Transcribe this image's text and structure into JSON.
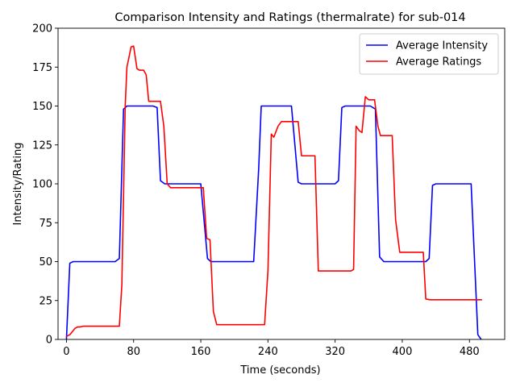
{
  "chart_data": {
    "type": "line",
    "title": "Comparison Intensity and Ratings (thermalrate) for sub-014",
    "xlabel": "Time (seconds)",
    "ylabel": "Intensity/Rating",
    "xlim": [
      -10,
      522
    ],
    "ylim": [
      0,
      200
    ],
    "xticks": [
      0,
      80,
      160,
      240,
      320,
      400,
      480
    ],
    "yticks": [
      0,
      25,
      50,
      75,
      100,
      125,
      150,
      175,
      200
    ],
    "grid": false,
    "legend_position": "upper right",
    "series": [
      {
        "name": "Average Intensity",
        "color": "#0000ff",
        "points": [
          [
            0,
            0
          ],
          [
            4,
            49
          ],
          [
            8,
            50
          ],
          [
            58,
            50
          ],
          [
            63,
            52
          ],
          [
            68,
            148
          ],
          [
            72,
            150
          ],
          [
            103,
            150
          ],
          [
            108,
            149
          ],
          [
            112,
            102
          ],
          [
            117,
            100
          ],
          [
            160,
            100
          ],
          [
            168,
            52
          ],
          [
            172,
            50
          ],
          [
            223,
            50
          ],
          [
            229,
            110
          ],
          [
            232,
            150
          ],
          [
            268,
            150
          ],
          [
            276,
            101
          ],
          [
            280,
            100
          ],
          [
            320,
            100
          ],
          [
            324,
            102
          ],
          [
            328,
            149
          ],
          [
            332,
            150
          ],
          [
            362,
            150
          ],
          [
            368,
            148
          ],
          [
            373,
            53
          ],
          [
            378,
            50
          ],
          [
            428,
            50
          ],
          [
            432,
            52
          ],
          [
            436,
            99
          ],
          [
            440,
            100
          ],
          [
            482,
            100
          ],
          [
            490,
            3
          ],
          [
            494,
            0
          ]
        ]
      },
      {
        "name": "Average Ratings",
        "color": "#ff0000",
        "points": [
          [
            0,
            2
          ],
          [
            4,
            3
          ],
          [
            10,
            7
          ],
          [
            13,
            8
          ],
          [
            16,
            8
          ],
          [
            20,
            8.5
          ],
          [
            63,
            8.5
          ],
          [
            66,
            35
          ],
          [
            70,
            150
          ],
          [
            72,
            175
          ],
          [
            74,
            180
          ],
          [
            77,
            188
          ],
          [
            80,
            188.5
          ],
          [
            84,
            174
          ],
          [
            87,
            173
          ],
          [
            92,
            173
          ],
          [
            95,
            170
          ],
          [
            98,
            153
          ],
          [
            112,
            153
          ],
          [
            116,
            137
          ],
          [
            120,
            100
          ],
          [
            124,
            97.5
          ],
          [
            163,
            97.5
          ],
          [
            167,
            65
          ],
          [
            171,
            64
          ],
          [
            175,
            18
          ],
          [
            179,
            9.5
          ],
          [
            236,
            9.5
          ],
          [
            240,
            44
          ],
          [
            244,
            132
          ],
          [
            247,
            130
          ],
          [
            252,
            137
          ],
          [
            256,
            140
          ],
          [
            276,
            140
          ],
          [
            280,
            118
          ],
          [
            296,
            118
          ],
          [
            300,
            44
          ],
          [
            339,
            44
          ],
          [
            342,
            45
          ],
          [
            345,
            137
          ],
          [
            349,
            134
          ],
          [
            352,
            133
          ],
          [
            356,
            156
          ],
          [
            360,
            154
          ],
          [
            367,
            154
          ],
          [
            371,
            137
          ],
          [
            374,
            131
          ],
          [
            388,
            131
          ],
          [
            392,
            77
          ],
          [
            397,
            56
          ],
          [
            425,
            56
          ],
          [
            428,
            26
          ],
          [
            433,
            25.5
          ],
          [
            495,
            25.5
          ]
        ]
      }
    ]
  }
}
